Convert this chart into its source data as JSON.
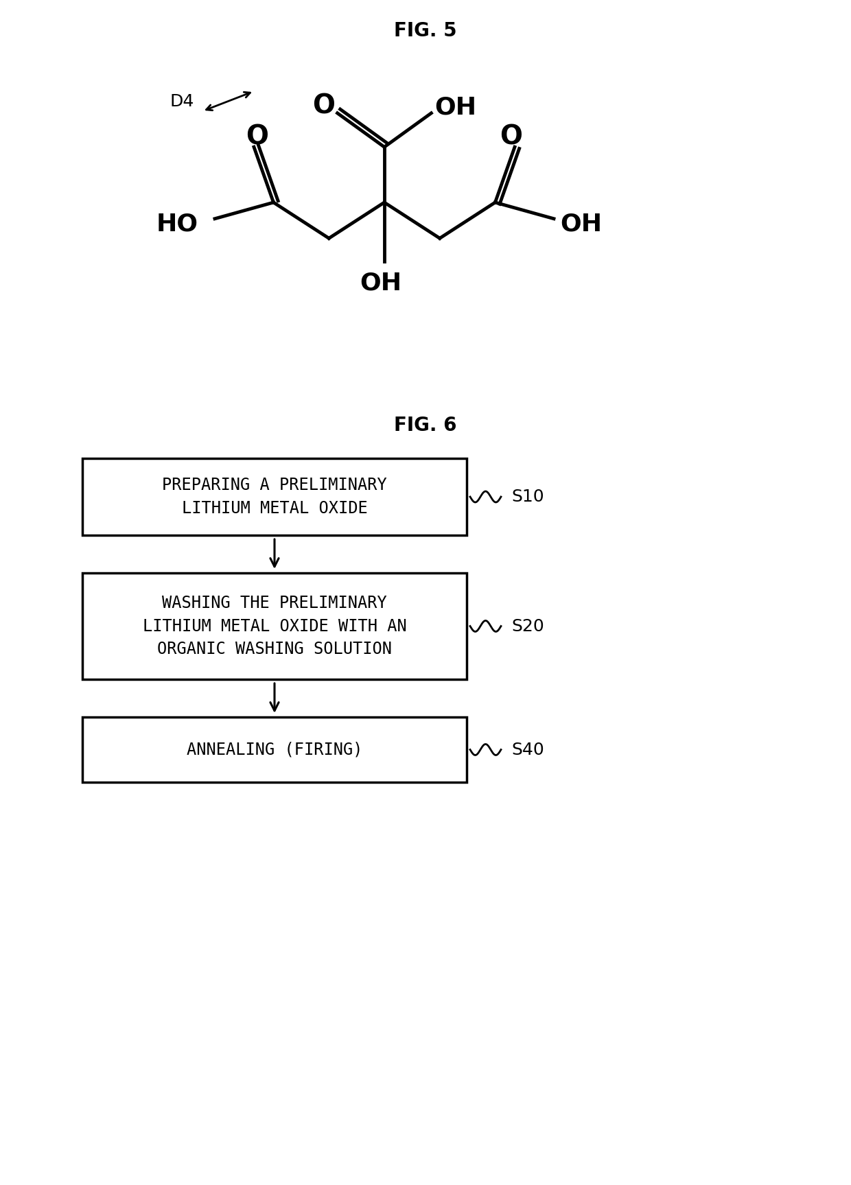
{
  "fig5_title": "FIG. 5",
  "fig6_title": "FIG. 6",
  "d4_label": "D4",
  "box1_text": "PREPARING A PRELIMINARY\nLITHIUM METAL OXIDE",
  "box1_label": "S10",
  "box2_text": "WASHING THE PRELIMINARY\nLITHIUM METAL OXIDE WITH AN\nORGANIC WASHING SOLUTION",
  "box2_label": "S20",
  "box3_text": "ANNEALING (FIRING)",
  "box3_label": "S40",
  "bg_color": "#ffffff",
  "line_color": "#000000",
  "text_color": "#000000",
  "fig_width": 12.4,
  "fig_height": 17.27,
  "dpi": 100
}
